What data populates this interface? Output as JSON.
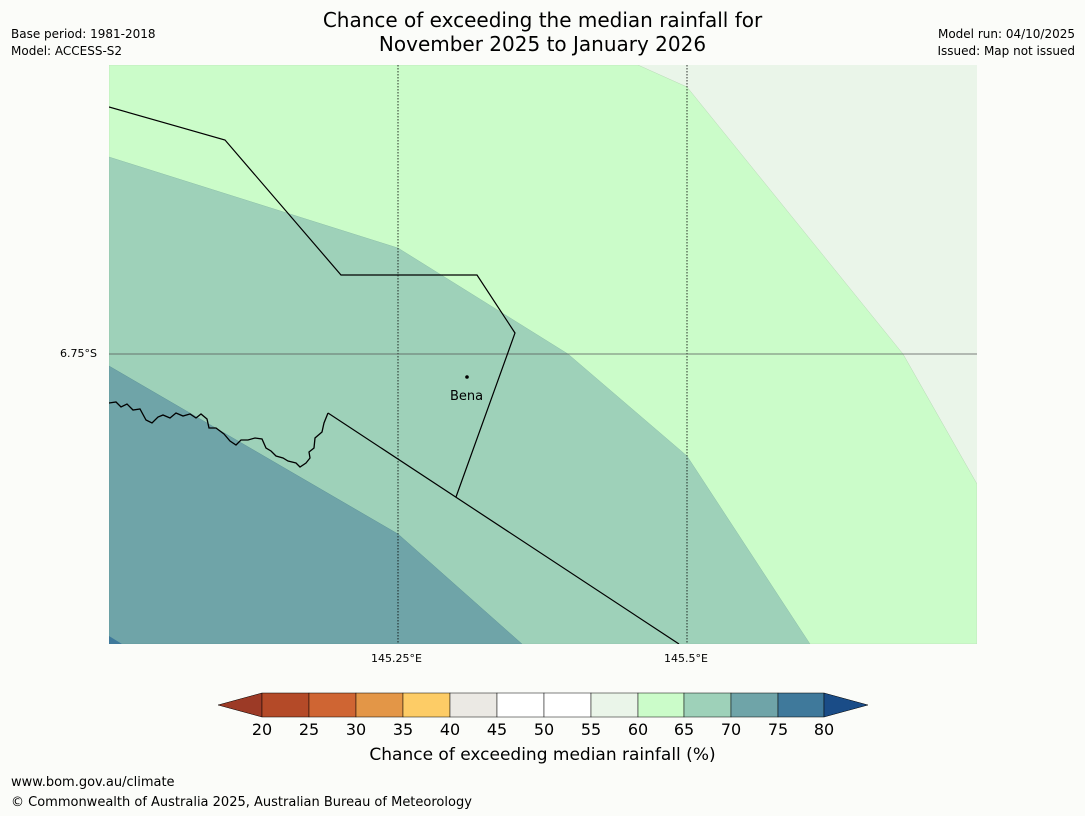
{
  "title": {
    "line1": "Chance of exceeding the median rainfall for",
    "line2": "November 2025 to January 2026"
  },
  "meta_left": {
    "base_period": "Base period: 1981-2018",
    "model": "Model: ACCESS-S2"
  },
  "meta_right": {
    "model_run": "Model run: 04/10/2025",
    "issued": "Issued: Map not issued"
  },
  "map": {
    "latitude_label": "6.75°S",
    "longitude_labels": [
      "145.25°E",
      "145.5°E"
    ],
    "places": [
      {
        "name": "Bena"
      }
    ]
  },
  "colorbar": {
    "label": "Chance of exceeding median rainfall (%)",
    "ticks": [
      "20",
      "25",
      "30",
      "35",
      "40",
      "45",
      "50",
      "55",
      "60",
      "65",
      "70",
      "75",
      "80"
    ],
    "colors": {
      "below_20": "#9c3a26",
      "20_25": "#b44a28",
      "25_30": "#cf6533",
      "30_35": "#e39647",
      "35_40": "#fdcc66",
      "40_45": "#ebe9e4",
      "45_50": "#ffffff",
      "50_55": "#ffffff",
      "55_60": "#eaf5e9",
      "60_65": "#cbfcc9",
      "65_70": "#9ed1b9",
      "70_75": "#6fa4a8",
      "75_80": "#3f799b",
      "above_80": "#1a4c87"
    }
  },
  "footer": {
    "url": "www.bom.gov.au/climate",
    "copyright": "© Commonwealth of Australia 2025, Australian Bureau of Meteorology"
  }
}
